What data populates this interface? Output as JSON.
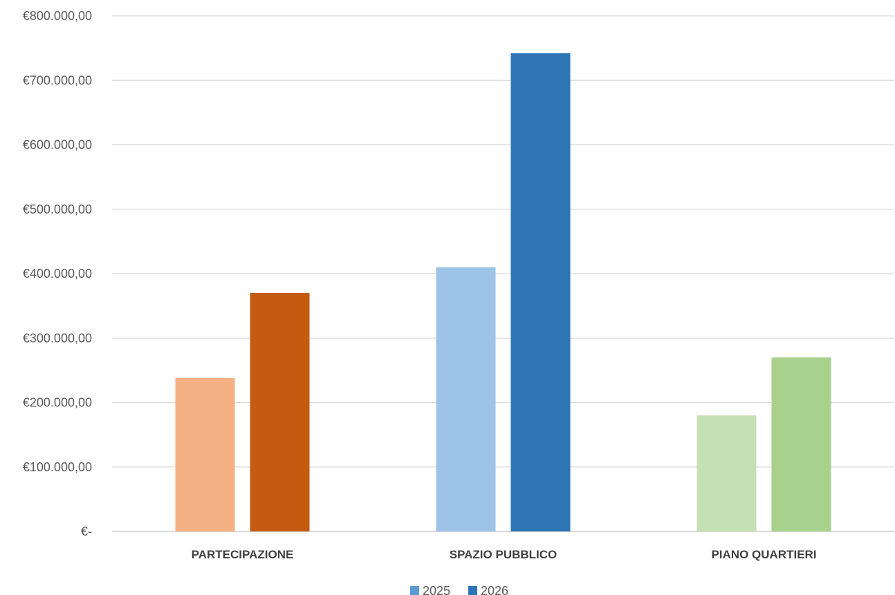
{
  "chart_data": {
    "type": "bar",
    "categories": [
      "PARTECIPAZIONE",
      "SPAZIO PUBBLICO",
      "PIANO QUARTIERI"
    ],
    "series": [
      {
        "name": "2025",
        "values": [
          238000,
          410000,
          180000
        ],
        "colors": [
          "#F4B183",
          "#9DC3E6",
          "#C5E0B4"
        ]
      },
      {
        "name": "2026",
        "values": [
          370000,
          742000,
          270000
        ],
        "colors": [
          "#C55A11",
          "#2E75B6",
          "#A9D18E"
        ]
      }
    ],
    "legend_colors": [
      "#5B9BD5",
      "#2E75B6"
    ],
    "y_ticks": [
      0,
      100000,
      200000,
      300000,
      400000,
      500000,
      600000,
      700000,
      800000
    ],
    "y_tick_labels": [
      "€-",
      "€100.000,00",
      "€200.000,00",
      "€300.000,00",
      "€400.000,00",
      "€500.000,00",
      "€600.000,00",
      "€700.000,00",
      "€800.000,00"
    ],
    "ylim": [
      0,
      800000
    ],
    "grid": true,
    "legend_position": "bottom"
  }
}
